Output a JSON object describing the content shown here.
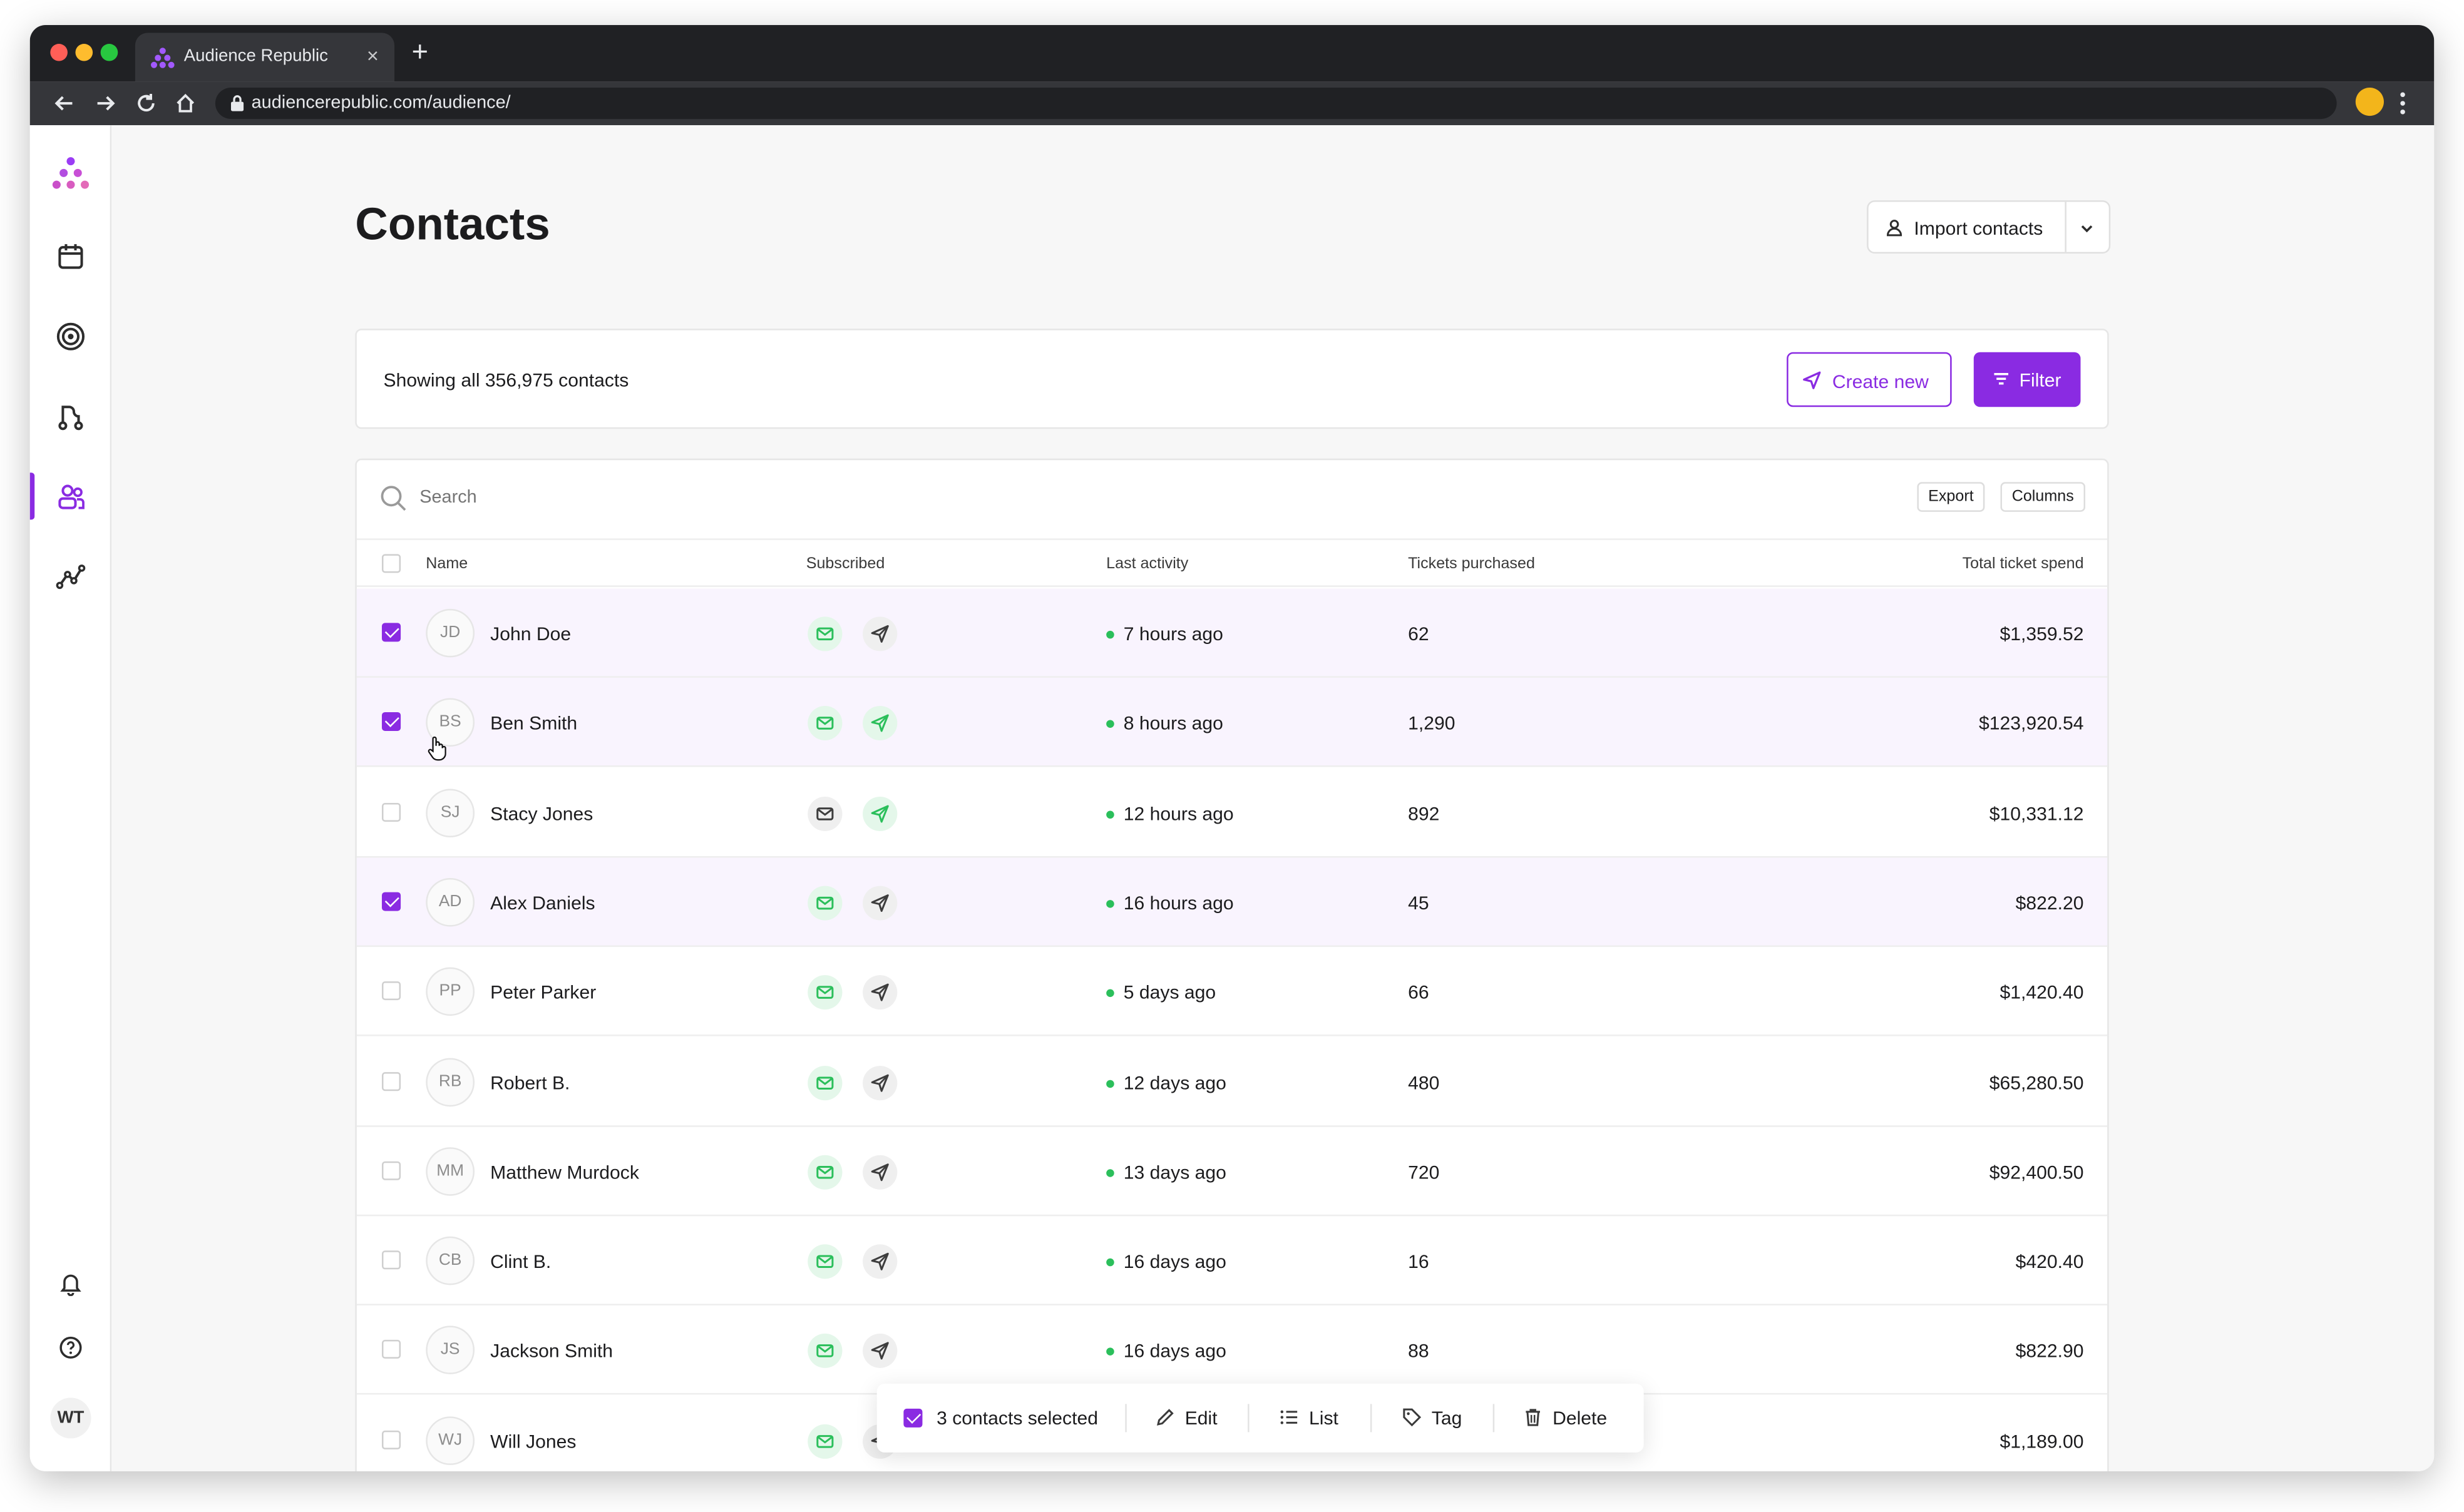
{
  "browser": {
    "tab_title": "Audience Republic",
    "new_tab": "+",
    "close": "×",
    "url": "audiencerepublic.com/audience/"
  },
  "sidebar": {
    "items": [
      "logo-icon",
      "calendar-icon",
      "target-icon",
      "route-icon",
      "contacts-icon",
      "analytics-icon"
    ],
    "active": "contacts-icon",
    "bottom": [
      "bell-icon",
      "help-icon"
    ],
    "user_initials": "WT"
  },
  "header": {
    "title": "Contacts",
    "import_label": "Import contacts"
  },
  "summary": {
    "showing": "Showing all 356,975 contacts",
    "create_label": "Create new",
    "filter_label": "Filter"
  },
  "table": {
    "search_placeholder": "Search",
    "export_label": "Export",
    "columns_label": "Columns",
    "headers": {
      "name": "Name",
      "subscribed": "Subscribed",
      "activity": "Last activity",
      "tickets": "Tickets purchased",
      "spend": "Total ticket spend"
    },
    "rows": [
      {
        "initials": "JD",
        "name": "John Doe",
        "email_sub": true,
        "sms_sub": false,
        "activity": "7 hours ago",
        "tickets": "62",
        "spend": "$1,359.52",
        "selected": true
      },
      {
        "initials": "BS",
        "name": "Ben Smith",
        "email_sub": true,
        "sms_sub": true,
        "activity": "8 hours ago",
        "tickets": "1,290",
        "spend": "$123,920.54",
        "selected": true
      },
      {
        "initials": "SJ",
        "name": "Stacy Jones",
        "email_sub": false,
        "sms_sub": true,
        "activity": "12 hours ago",
        "tickets": "892",
        "spend": "$10,331.12",
        "selected": false
      },
      {
        "initials": "AD",
        "name": "Alex Daniels",
        "email_sub": true,
        "sms_sub": false,
        "activity": "16 hours ago",
        "tickets": "45",
        "spend": "$822.20",
        "selected": true
      },
      {
        "initials": "PP",
        "name": "Peter Parker",
        "email_sub": true,
        "sms_sub": false,
        "activity": "5 days ago",
        "tickets": "66",
        "spend": "$1,420.40",
        "selected": false
      },
      {
        "initials": "RB",
        "name": "Robert B.",
        "email_sub": true,
        "sms_sub": false,
        "activity": "12 days ago",
        "tickets": "480",
        "spend": "$65,280.50",
        "selected": false
      },
      {
        "initials": "MM",
        "name": "Matthew Murdock",
        "email_sub": true,
        "sms_sub": false,
        "activity": "13 days ago",
        "tickets": "720",
        "spend": "$92,400.50",
        "selected": false
      },
      {
        "initials": "CB",
        "name": "Clint B.",
        "email_sub": true,
        "sms_sub": false,
        "activity": "16 days ago",
        "tickets": "16",
        "spend": "$420.40",
        "selected": false
      },
      {
        "initials": "JS",
        "name": "Jackson Smith",
        "email_sub": true,
        "sms_sub": false,
        "activity": "16 days ago",
        "tickets": "88",
        "spend": "$822.90",
        "selected": false
      },
      {
        "initials": "WJ",
        "name": "Will Jones",
        "email_sub": true,
        "sms_sub": false,
        "activity": "",
        "tickets": "",
        "spend": "$1,189.00",
        "selected": false
      }
    ]
  },
  "bulk_actions": {
    "selected_label": "3 contacts selected",
    "edit": "Edit",
    "list": "List",
    "tag": "Tag",
    "delete": "Delete"
  },
  "colors": {
    "accent": "#8a2be2",
    "subscribed": "#2bbf5b",
    "selected_row": "#f9f4fe"
  }
}
